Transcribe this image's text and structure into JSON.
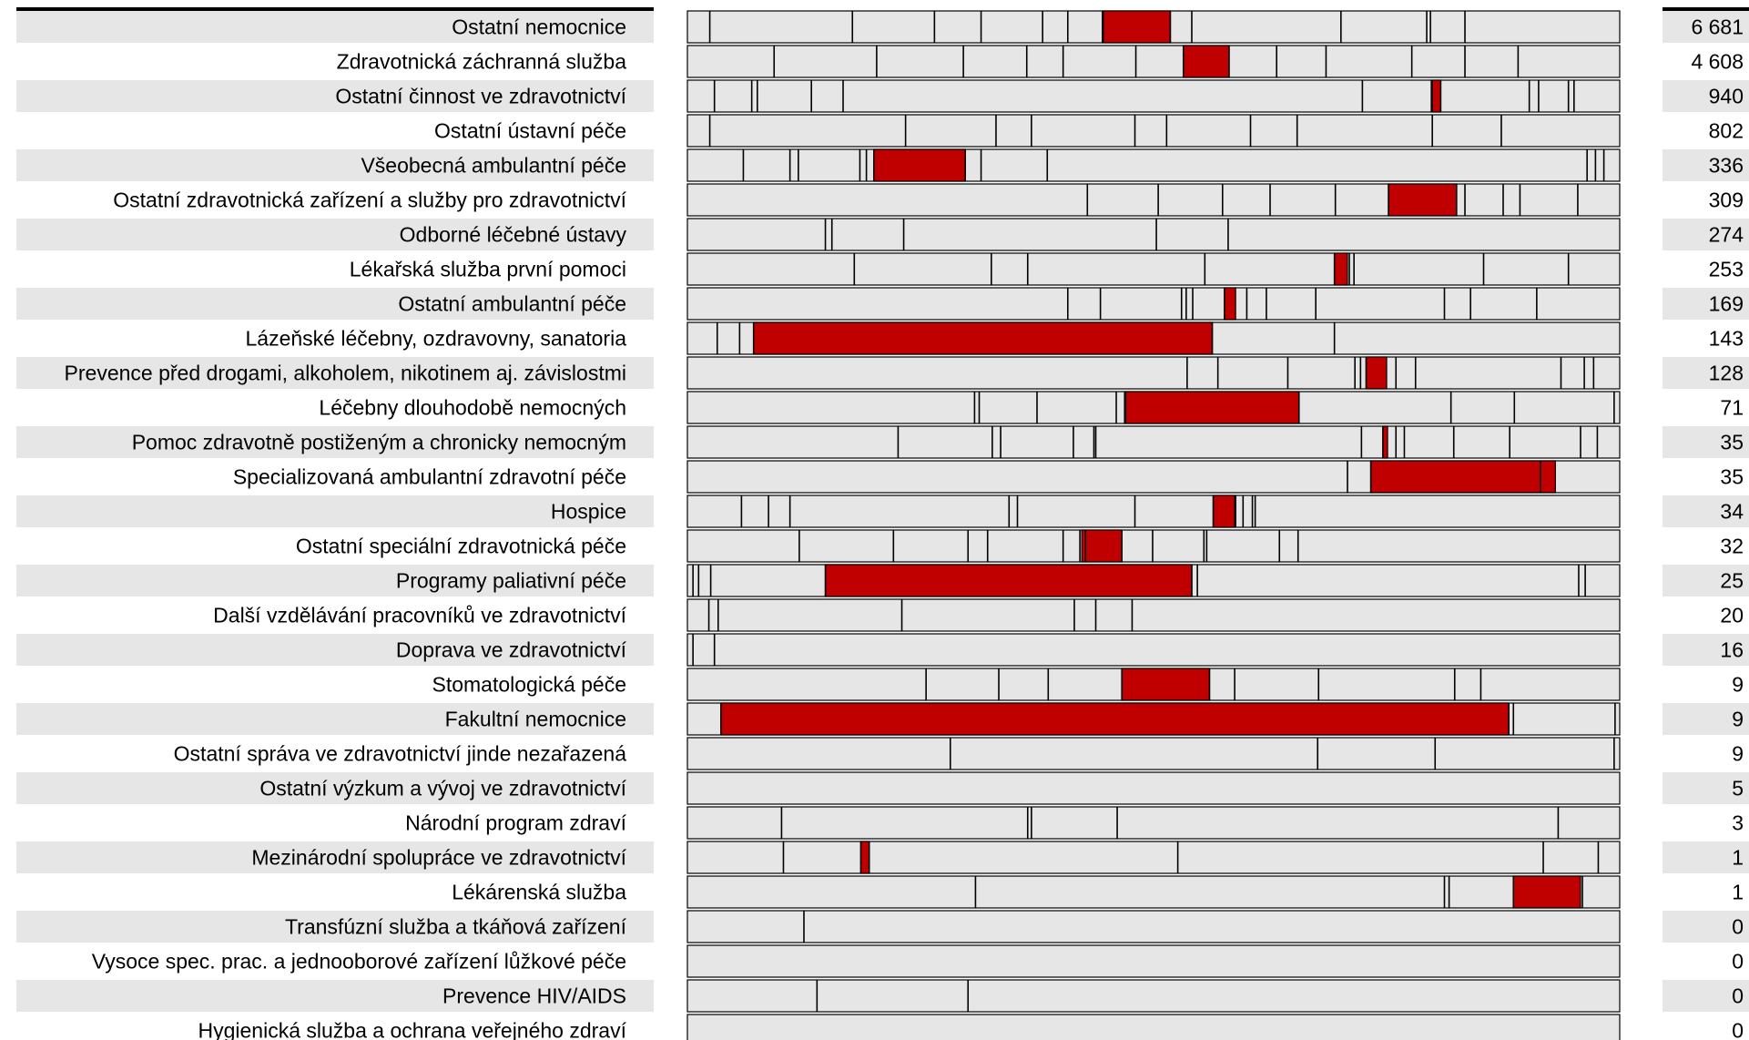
{
  "chart_data": {
    "type": "bar",
    "title": "",
    "xlabel": "",
    "ylabel": "",
    "grid": false,
    "legend": "none",
    "colors": {
      "label_band": "#e6e6e6",
      "segment": "#e6e6e6",
      "segment_border": "#000000",
      "highlight": "#c00000",
      "value_band": "#e6e6e6"
    },
    "categories": [
      "Ostatní nemocnice",
      "Zdravotnická záchranná služba",
      "Ostatní činnost ve zdravotnictví",
      "Ostatní ústavní péče",
      "Všeobecná ambulantní péče",
      "Ostatní zdravotnická zařízení a služby pro zdravotnictví",
      "Odborné léčebné ústavy",
      "Lékařská služba první pomoci",
      "Ostatní ambulantní péče",
      "Lázeňské léčebny, ozdravovny, sanatoria",
      "Prevence před drogami, alkoholem, nikotinem aj. závislostmi",
      "Léčebny dlouhodobě nemocných",
      "Pomoc zdravotně postiženým a chronicky nemocným",
      "Specializovaná ambulantní zdravotní péče",
      "Hospice",
      "Ostatní speciální zdravotnická péče",
      "Programy paliativní péče",
      "Další vzdělávání pracovníků ve zdravotnictví",
      "Doprava ve zdravotnictví",
      "Stomatologická péče",
      "Fakultní nemocnice",
      "Ostatní správa ve zdravotnictví jinde nezařazená",
      "Ostatní výzkum a vývoj ve zdravotnictví",
      "Národní program zdraví",
      "Mezinárodní spolupráce ve zdravotnictví",
      "Lékárenská služba",
      "Transfúzní služba a tkáňová zařízení",
      "Vysoce spec. prac. a jednooborové zařízení lůžkové péče",
      "Prevence HIV/AIDS",
      "Hygienická služba a ochrana veřejného zdraví"
    ],
    "values": [
      6681,
      4608,
      940,
      802,
      336,
      309,
      274,
      253,
      169,
      143,
      128,
      71,
      35,
      35,
      34,
      32,
      25,
      20,
      16,
      9,
      9,
      9,
      5,
      3,
      1,
      1,
      0,
      0,
      0,
      0
    ],
    "value_labels": [
      "6 681",
      "4 608",
      "940",
      "802",
      "336",
      "309",
      "274",
      "253",
      "169",
      "143",
      "128",
      "71",
      "35",
      "35",
      "34",
      "32",
      "25",
      "20",
      "16",
      "9",
      "9",
      "9",
      "5",
      "3",
      "1",
      "1",
      "0",
      "0",
      "0",
      "0"
    ],
    "segment_breaks": [
      [
        0.024,
        0.177,
        0.265,
        0.315,
        0.381,
        0.408,
        0.446,
        0.518,
        0.541,
        0.701,
        0.793,
        0.797,
        0.834
      ],
      [
        0.093,
        0.203,
        0.296,
        0.364,
        0.403,
        0.481,
        0.532,
        0.581,
        0.632,
        0.685,
        0.777,
        0.834,
        0.891
      ],
      [
        0.029,
        0.069,
        0.075,
        0.133,
        0.167,
        0.724,
        0.798,
        0.808,
        0.903,
        0.913,
        0.945,
        0.951
      ],
      [
        0.024,
        0.234,
        0.331,
        0.369,
        0.48,
        0.514,
        0.604,
        0.654,
        0.799,
        0.873
      ],
      [
        0.06,
        0.11,
        0.119,
        0.185,
        0.192,
        0.2,
        0.298,
        0.315,
        0.386,
        0.965,
        0.974,
        0.983
      ],
      [
        0.429,
        0.505,
        0.574,
        0.625,
        0.695,
        0.752,
        0.825,
        0.834,
        0.875,
        0.893,
        0.955
      ],
      [
        0.148,
        0.155,
        0.232,
        0.503,
        0.58
      ],
      [
        0.179,
        0.326,
        0.365,
        0.555,
        0.694,
        0.71,
        0.715,
        0.854,
        0.945
      ],
      [
        0.408,
        0.443,
        0.53,
        0.535,
        0.542,
        0.576,
        0.6,
        0.621,
        0.674,
        0.812,
        0.84,
        0.911
      ],
      [
        0.032,
        0.056,
        0.071,
        0.563,
        0.694
      ],
      [
        0.536,
        0.569,
        0.644,
        0.716,
        0.722,
        0.728,
        0.76,
        0.781,
        0.937,
        0.962,
        0.972
      ],
      [
        0.308,
        0.313,
        0.375,
        0.46,
        0.469,
        0.47,
        0.656,
        0.819,
        0.887,
        0.994
      ],
      [
        0.226,
        0.327,
        0.336,
        0.414,
        0.436,
        0.438,
        0.723,
        0.746,
        0.76,
        0.769,
        0.822,
        0.882,
        0.958,
        0.976
      ],
      [
        0.708,
        0.733,
        0.915
      ],
      [
        0.058,
        0.087,
        0.11,
        0.345,
        0.354,
        0.48,
        0.564,
        0.588,
        0.596,
        0.606,
        0.609
      ],
      [
        0.12,
        0.221,
        0.301,
        0.322,
        0.403,
        0.421,
        0.427,
        0.466,
        0.499,
        0.554,
        0.557,
        0.635,
        0.655
      ],
      [
        0.006,
        0.012,
        0.025,
        0.148,
        0.541,
        0.547,
        0.956,
        0.963
      ],
      [
        0.023,
        0.033,
        0.23,
        0.415,
        0.438,
        0.477
      ],
      [
        0.006,
        0.029
      ],
      [
        0.256,
        0.334,
        0.387,
        0.466,
        0.56,
        0.587,
        0.677,
        0.823,
        0.851
      ],
      [
        0.036,
        0.881,
        0.886,
        0.995
      ],
      [
        0.282,
        0.676,
        0.802,
        0.994
      ],
      [],
      [
        0.101,
        0.365,
        0.369,
        0.461,
        0.934
      ],
      [
        0.103,
        0.186,
        0.195,
        0.526,
        0.918,
        0.977
      ],
      [
        0.309,
        0.812,
        0.817,
        0.886,
        0.96
      ],
      [
        0.125
      ],
      [],
      [
        0.139,
        0.301
      ],
      []
    ],
    "highlight_segments": [
      [
        0.445,
        0.518
      ],
      [
        0.532,
        0.581
      ],
      [
        0.799,
        0.808
      ],
      null,
      [
        0.2,
        0.298
      ],
      [
        0.752,
        0.825
      ],
      null,
      [
        0.694,
        0.708
      ],
      [
        0.576,
        0.588
      ],
      [
        0.071,
        0.563
      ],
      [
        0.728,
        0.75
      ],
      [
        0.469,
        0.656
      ],
      [
        0.746,
        0.751
      ],
      [
        0.733,
        0.931
      ],
      [
        0.564,
        0.587
      ],
      [
        0.423,
        0.466
      ],
      [
        0.148,
        0.541
      ],
      null,
      null,
      [
        0.466,
        0.56
      ],
      [
        0.036,
        0.881
      ],
      null,
      null,
      null,
      [
        0.186,
        0.195
      ],
      [
        0.886,
        0.958
      ],
      null,
      null,
      null,
      null
    ]
  }
}
